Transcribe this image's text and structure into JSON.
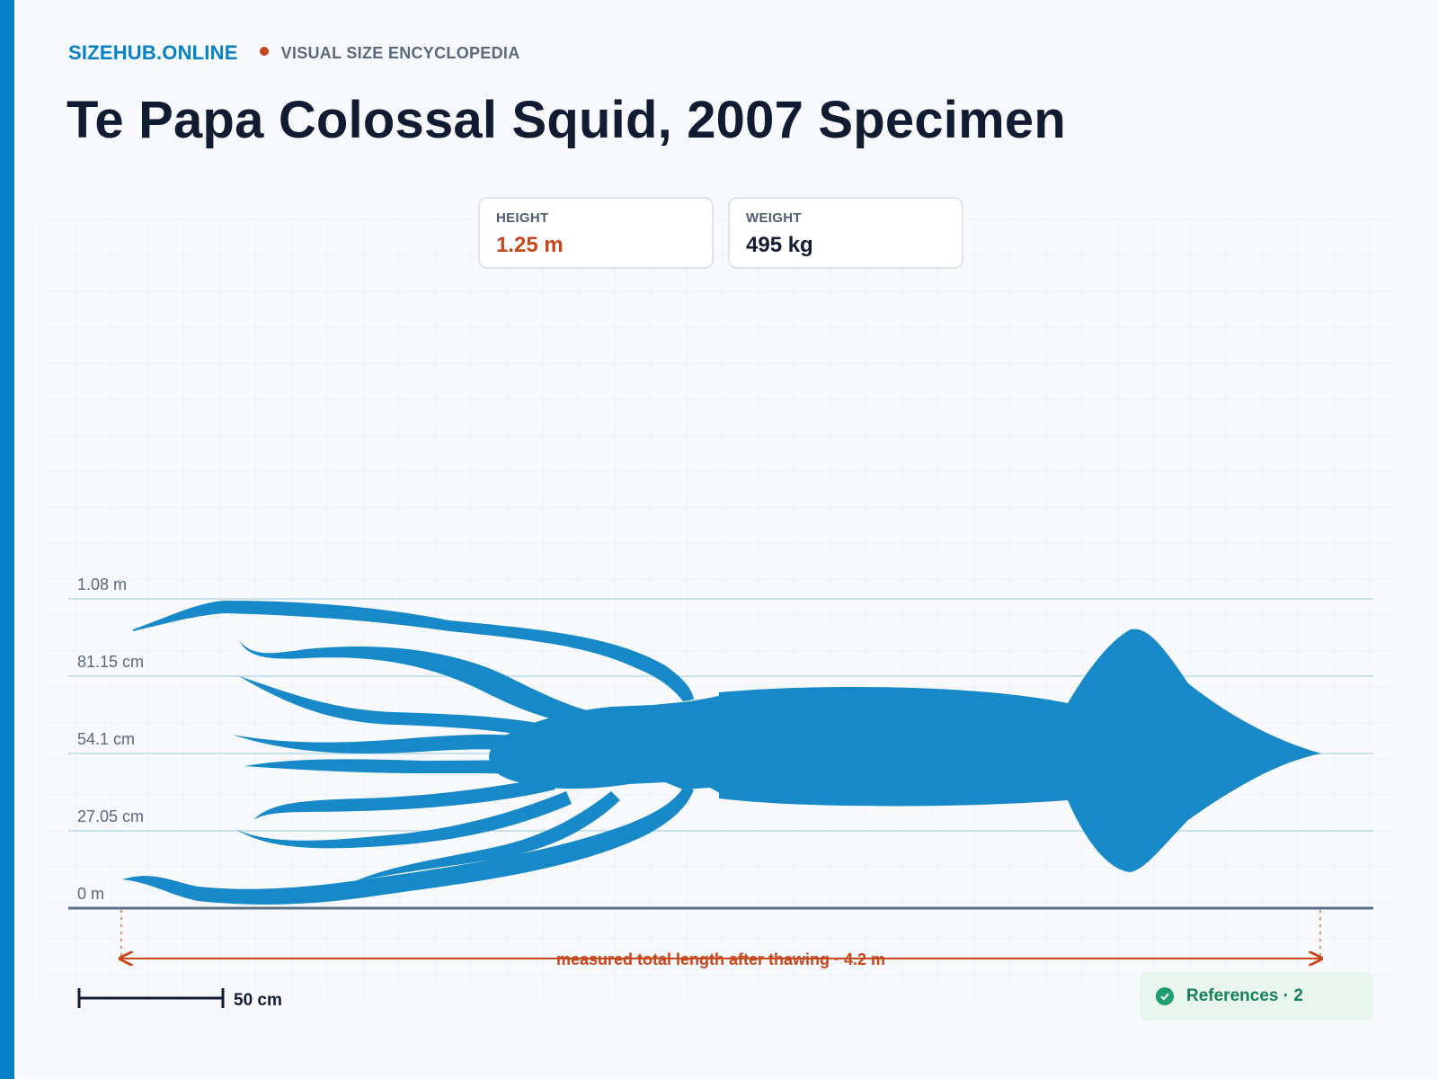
{
  "site": {
    "brand": "SIZEHUB.ONLINE",
    "tagline": "VISUAL SIZE ENCYCLOPEDIA"
  },
  "page": {
    "title": "Te Papa Colossal Squid, 2007 Specimen"
  },
  "stats": {
    "height": {
      "label": "HEIGHT",
      "value": "1.25 m"
    },
    "weight": {
      "label": "WEIGHT",
      "value": "495 kg"
    }
  },
  "chart_data": {
    "type": "size-comparison",
    "subject": "colossal squid silhouette",
    "y_unit": "m",
    "y_ticks": [
      {
        "value": 0,
        "label": "0 m"
      },
      {
        "value": 0.2705,
        "label": "27.05 cm"
      },
      {
        "value": 0.541,
        "label": "54.1 cm"
      },
      {
        "value": 0.8115,
        "label": "81.15 cm"
      },
      {
        "value": 1.082,
        "label": "1.08 m"
      }
    ],
    "length_annotation": {
      "label": "measured total length after thawing · 4.2 m",
      "value_m": 4.2
    },
    "scale_bar": {
      "label": "50 cm",
      "value_m": 0.5
    },
    "colors": {
      "silhouette": "#1789c8",
      "annotation": "#c8471a",
      "baseline": "#5d6f88",
      "tick_line": "#b7dbe7"
    }
  },
  "references": {
    "label": "References · 2",
    "icon": "check-circle-icon"
  }
}
